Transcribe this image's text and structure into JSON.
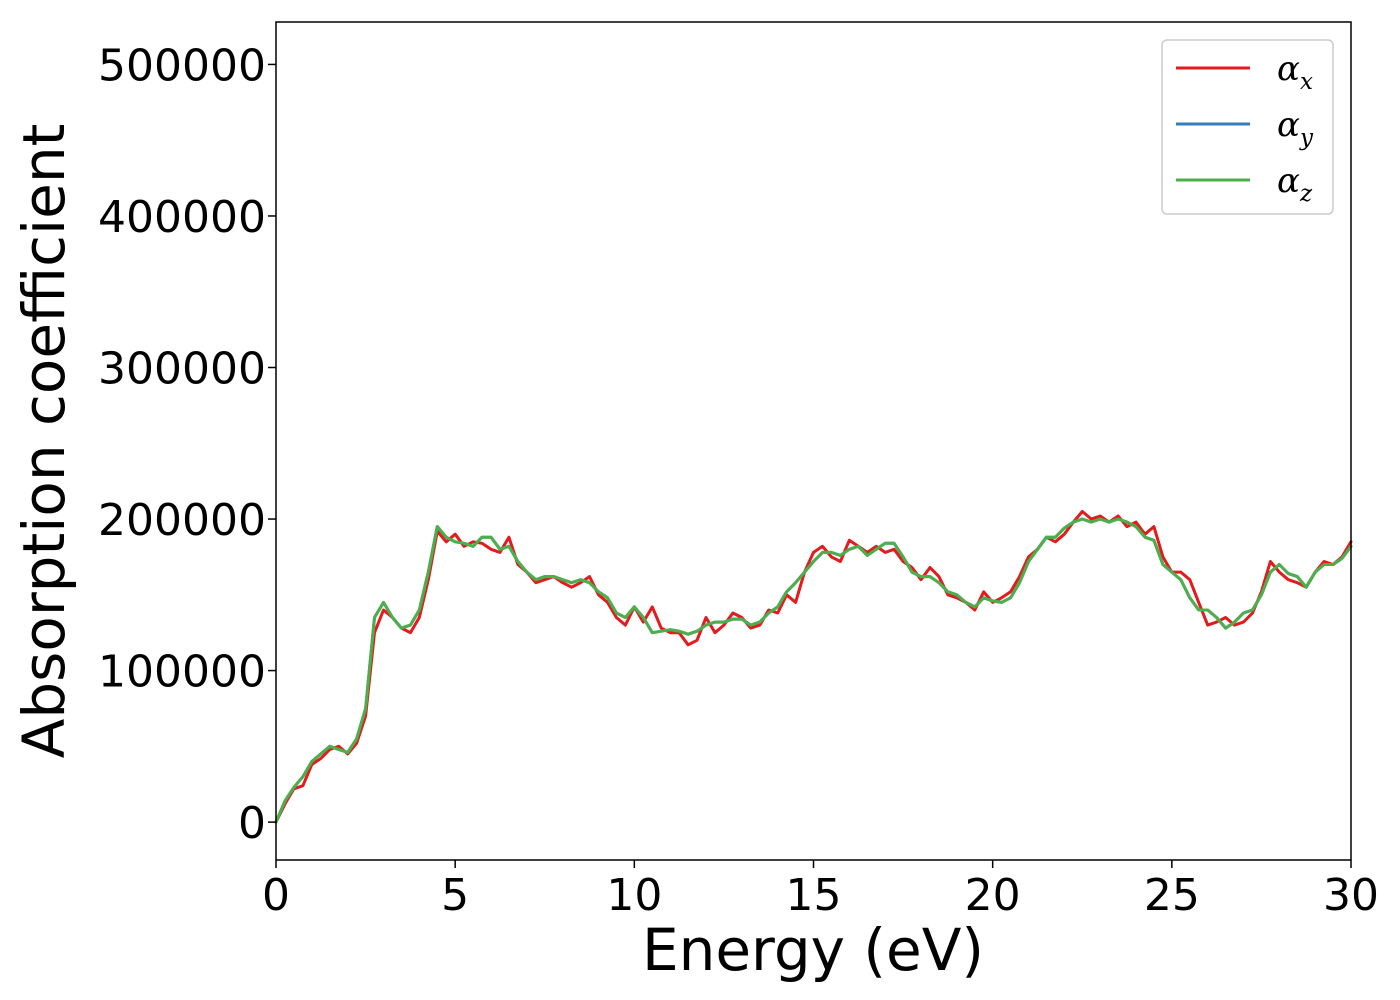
{
  "chart_data": {
    "type": "line",
    "title": "",
    "xlabel": "Energy (eV)",
    "ylabel": "Absorption coefficient",
    "xlim": [
      0,
      30
    ],
    "ylim": [
      -25000,
      528000
    ],
    "xticks": [
      0,
      5,
      10,
      15,
      20,
      25,
      30
    ],
    "yticks": [
      0,
      100000,
      200000,
      300000,
      400000,
      500000
    ],
    "grid": false,
    "legend_position": "top-right",
    "x": [
      0,
      0.25,
      0.5,
      0.75,
      1,
      1.25,
      1.5,
      1.75,
      2,
      2.25,
      2.5,
      2.75,
      3,
      3.25,
      3.5,
      3.75,
      4,
      4.25,
      4.5,
      4.75,
      5,
      5.25,
      5.5,
      5.75,
      6,
      6.25,
      6.5,
      6.75,
      7,
      7.25,
      7.5,
      7.75,
      8,
      8.25,
      8.5,
      8.75,
      9,
      9.25,
      9.5,
      9.75,
      10,
      10.25,
      10.5,
      10.75,
      11,
      11.25,
      11.5,
      11.75,
      12,
      12.25,
      12.5,
      12.75,
      13,
      13.25,
      13.5,
      13.75,
      14,
      14.25,
      14.5,
      14.75,
      15,
      15.25,
      15.5,
      15.75,
      16,
      16.25,
      16.5,
      16.75,
      17,
      17.25,
      17.5,
      17.75,
      18,
      18.25,
      18.5,
      18.75,
      19,
      19.25,
      19.5,
      19.75,
      20,
      20.25,
      20.5,
      20.75,
      21,
      21.25,
      21.5,
      21.75,
      22,
      22.25,
      22.5,
      22.75,
      23,
      23.25,
      23.5,
      23.75,
      24,
      24.25,
      24.5,
      24.75,
      25,
      25.25,
      25.5,
      25.75,
      26,
      26.25,
      26.5,
      26.75,
      27,
      27.25,
      27.5,
      27.75,
      28,
      28.25,
      28.5,
      28.75,
      29,
      29.25,
      29.5,
      29.75,
      30
    ],
    "series": [
      {
        "name": "α_x",
        "label_base": "α",
        "label_sub": "x",
        "color": "#e41a1c",
        "values": [
          0,
          12000,
          22000,
          24000,
          38000,
          42000,
          48000,
          50000,
          45000,
          52000,
          70000,
          125000,
          140000,
          135000,
          128000,
          125000,
          135000,
          160000,
          192000,
          185000,
          190000,
          182000,
          185000,
          184000,
          180000,
          178000,
          188000,
          170000,
          165000,
          158000,
          160000,
          162000,
          158000,
          155000,
          158000,
          162000,
          150000,
          145000,
          135000,
          130000,
          142000,
          132000,
          142000,
          128000,
          125000,
          125000,
          117000,
          120000,
          135000,
          125000,
          130000,
          138000,
          135000,
          128000,
          130000,
          140000,
          138000,
          150000,
          145000,
          165000,
          178000,
          182000,
          175000,
          172000,
          186000,
          182000,
          178000,
          182000,
          178000,
          180000,
          172000,
          168000,
          160000,
          168000,
          162000,
          150000,
          148000,
          145000,
          140000,
          152000,
          145000,
          148000,
          152000,
          162000,
          175000,
          180000,
          188000,
          185000,
          190000,
          198000,
          205000,
          200000,
          202000,
          198000,
          202000,
          195000,
          198000,
          190000,
          195000,
          175000,
          165000,
          165000,
          160000,
          145000,
          130000,
          132000,
          135000,
          130000,
          132000,
          138000,
          152000,
          172000,
          165000,
          160000,
          158000,
          155000,
          165000,
          172000,
          170000,
          175000,
          185000
        ]
      },
      {
        "name": "α_y",
        "label_base": "α",
        "label_sub": "y",
        "color": "#377eb8",
        "values": [
          0,
          14000,
          23000,
          30000,
          40000,
          45000,
          50000,
          48000,
          46000,
          55000,
          75000,
          135000,
          145000,
          135000,
          128000,
          130000,
          140000,
          165000,
          195000,
          188000,
          185000,
          184000,
          182000,
          188000,
          188000,
          180000,
          182000,
          172000,
          165000,
          160000,
          162000,
          162000,
          160000,
          158000,
          160000,
          158000,
          152000,
          148000,
          138000,
          135000,
          142000,
          135000,
          125000,
          126000,
          127000,
          126000,
          124000,
          126000,
          130000,
          132000,
          132000,
          134000,
          134000,
          130000,
          132000,
          138000,
          142000,
          152000,
          158000,
          165000,
          172000,
          178000,
          178000,
          176000,
          180000,
          182000,
          176000,
          180000,
          184000,
          184000,
          175000,
          165000,
          162000,
          162000,
          158000,
          152000,
          150000,
          145000,
          142000,
          148000,
          146000,
          145000,
          148000,
          158000,
          172000,
          180000,
          188000,
          188000,
          194000,
          198000,
          200000,
          198000,
          200000,
          198000,
          200000,
          198000,
          195000,
          188000,
          186000,
          170000,
          165000,
          160000,
          148000,
          140000,
          140000,
          135000,
          128000,
          132000,
          138000,
          140000,
          150000,
          165000,
          170000,
          164000,
          162000,
          155000,
          165000,
          170000,
          170000,
          174000,
          182000
        ]
      },
      {
        "name": "α_z",
        "label_base": "α",
        "label_sub": "z",
        "color": "#4daf4a",
        "values": [
          0,
          14000,
          23000,
          30000,
          40000,
          45000,
          50000,
          48000,
          46000,
          55000,
          75000,
          135000,
          145000,
          135000,
          128000,
          130000,
          140000,
          165000,
          195000,
          188000,
          185000,
          184000,
          182000,
          188000,
          188000,
          180000,
          182000,
          172000,
          165000,
          160000,
          162000,
          162000,
          160000,
          158000,
          160000,
          158000,
          152000,
          148000,
          138000,
          135000,
          142000,
          135000,
          125000,
          126000,
          127000,
          126000,
          124000,
          126000,
          130000,
          132000,
          132000,
          134000,
          134000,
          130000,
          132000,
          138000,
          142000,
          152000,
          158000,
          165000,
          172000,
          178000,
          178000,
          176000,
          180000,
          182000,
          176000,
          180000,
          184000,
          184000,
          175000,
          165000,
          162000,
          162000,
          158000,
          152000,
          150000,
          145000,
          142000,
          148000,
          146000,
          145000,
          148000,
          158000,
          172000,
          180000,
          188000,
          188000,
          194000,
          198000,
          200000,
          198000,
          200000,
          198000,
          200000,
          198000,
          195000,
          188000,
          186000,
          170000,
          165000,
          160000,
          148000,
          140000,
          140000,
          135000,
          128000,
          132000,
          138000,
          140000,
          150000,
          165000,
          170000,
          164000,
          162000,
          155000,
          165000,
          170000,
          170000,
          174000,
          182000
        ]
      }
    ]
  }
}
